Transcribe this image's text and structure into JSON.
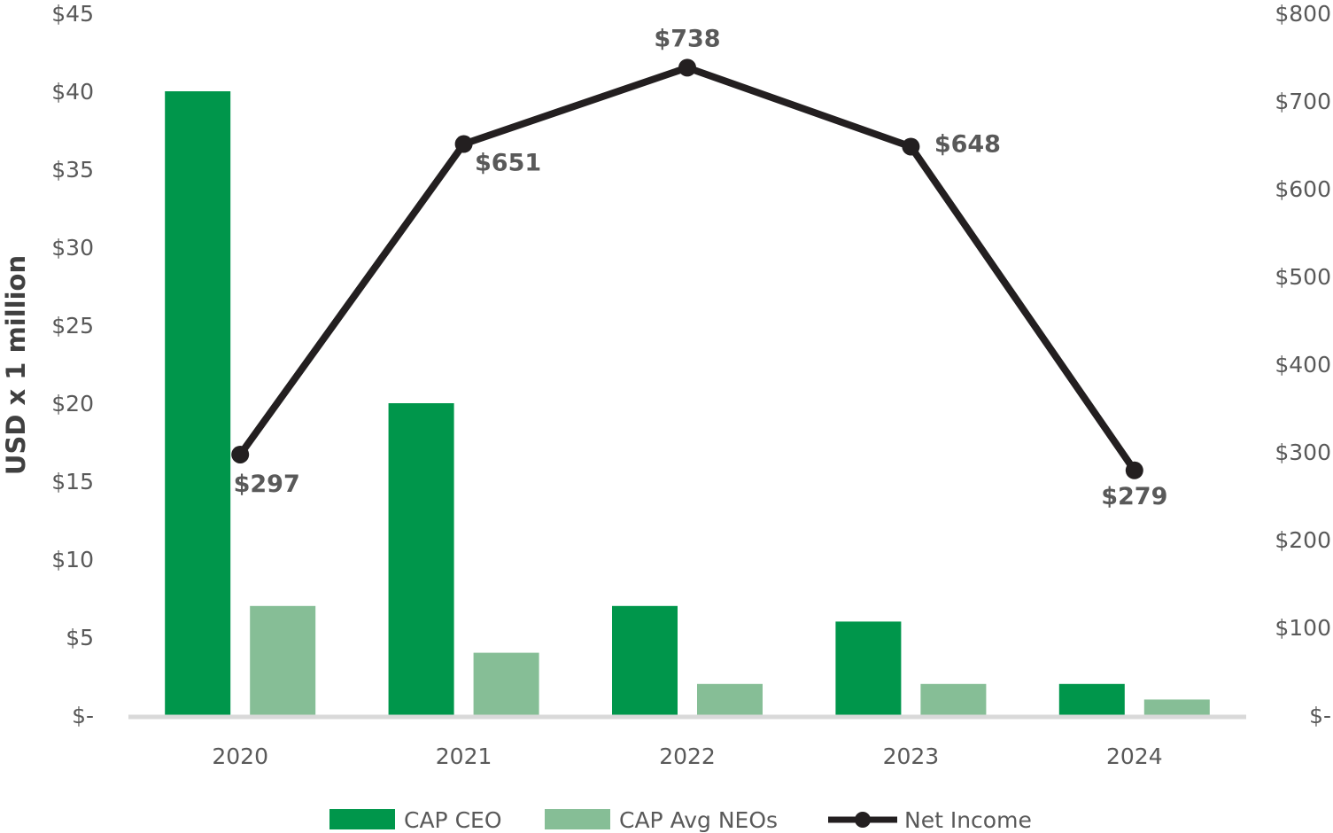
{
  "chart_data": {
    "type": "bar",
    "categories": [
      "2020",
      "2021",
      "2022",
      "2023",
      "2024"
    ],
    "series": [
      {
        "name": "CAP CEO",
        "type": "bar",
        "axis": "left",
        "color": "#00964B",
        "values": [
          40,
          20,
          7,
          6,
          2
        ]
      },
      {
        "name": "CAP Avg NEOs",
        "type": "bar",
        "axis": "left",
        "color": "#86BE96",
        "values": [
          7,
          4,
          2,
          2,
          1
        ]
      },
      {
        "name": "Net Income",
        "type": "line",
        "axis": "right",
        "color": "#231F20",
        "values": [
          297,
          651,
          738,
          648,
          279
        ],
        "data_labels": [
          "$297",
          "$651",
          "$738",
          "$648",
          "$279"
        ]
      }
    ],
    "ylabel": "USD x 1 million",
    "ylim": [
      0,
      45
    ],
    "y_ticks": [
      "$-",
      "$5",
      "$10",
      "$15",
      "$20",
      "$25",
      "$30",
      "$35",
      "$40",
      "$45"
    ],
    "y2lim": [
      0,
      800
    ],
    "y2_ticks": [
      "$-",
      "$100",
      "$200",
      "$300",
      "$400",
      "$500",
      "$600",
      "$700",
      "$800"
    ],
    "grid": false,
    "legend": "bottom",
    "legend_entries": [
      "CAP CEO",
      "CAP Avg NEOs",
      "Net Income"
    ],
    "axis_color": "#D9D9D9"
  }
}
